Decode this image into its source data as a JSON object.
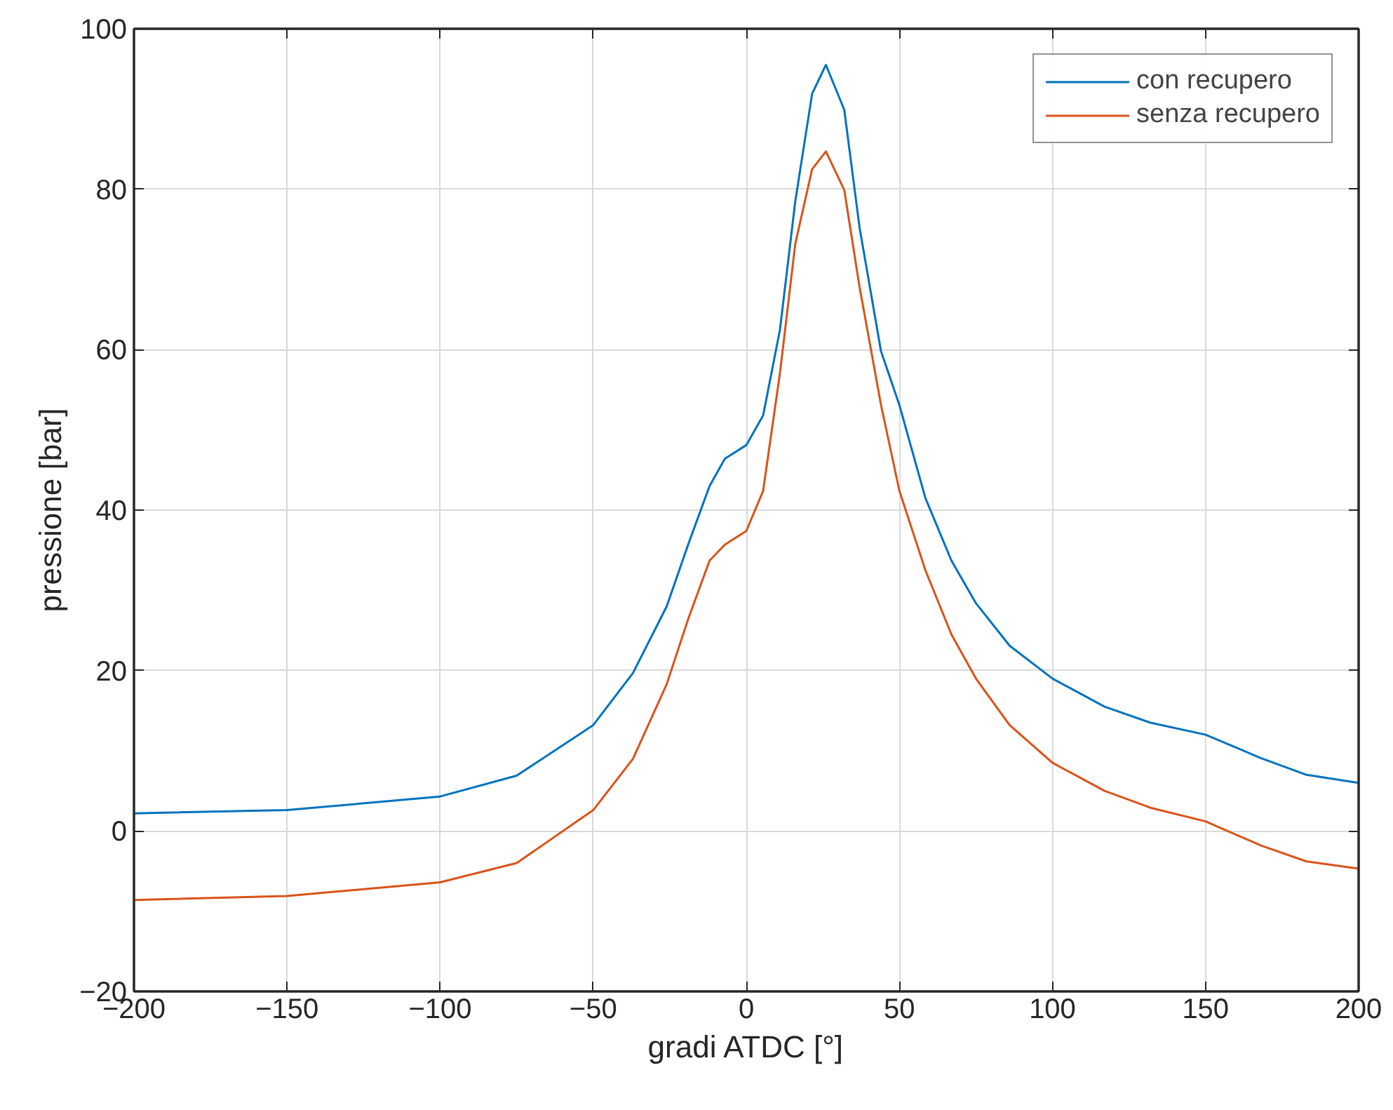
{
  "chart_data": {
    "type": "line",
    "xlabel": "gradi ATDC [°]",
    "ylabel": "pressione [bar]",
    "x": [
      -200,
      -150,
      -100,
      -75,
      -50,
      -37,
      -26,
      -19,
      -12,
      -7,
      0,
      5.5,
      11,
      16,
      21.5,
      26,
      32,
      37,
      44,
      50,
      58.5,
      67,
      75,
      86,
      100,
      117,
      132,
      150,
      168,
      183,
      200
    ],
    "series": [
      {
        "name": "con recupero",
        "color": "#0072bd",
        "values": [
          2.2,
          2.6,
          4.3,
          6.9,
          13.2,
          19.7,
          28,
          35.7,
          43,
          46.4,
          48.1,
          51.8,
          62.5,
          78.5,
          91.9,
          95.5,
          89.9,
          75.2,
          59.8,
          53.1,
          41.5,
          33.7,
          28.4,
          23.1,
          19.0,
          15.5,
          13.5,
          12.0,
          9.1,
          7.0,
          6.0
        ]
      },
      {
        "name": "senza recupero",
        "color": "#d95319",
        "values": [
          -8.6,
          -8.1,
          -6.4,
          -4,
          2.6,
          9,
          18.3,
          26.4,
          33.7,
          35.7,
          37.4,
          42.4,
          57.1,
          73.2,
          82.5,
          84.7,
          79.9,
          67.8,
          53.1,
          42.4,
          32.5,
          24.5,
          19,
          13.2,
          8.5,
          5.0,
          2.9,
          1.2,
          -1.8,
          -3.8,
          -4.7
        ]
      }
    ],
    "xlim": [
      -200,
      200
    ],
    "ylim": [
      -20,
      100
    ],
    "xticks": [
      -200,
      -150,
      -100,
      -50,
      0,
      50,
      100,
      150,
      200
    ],
    "yticks": [
      -20,
      0,
      20,
      40,
      60,
      80,
      100
    ],
    "grid": true,
    "legend": "top right",
    "line_style": "solid"
  }
}
